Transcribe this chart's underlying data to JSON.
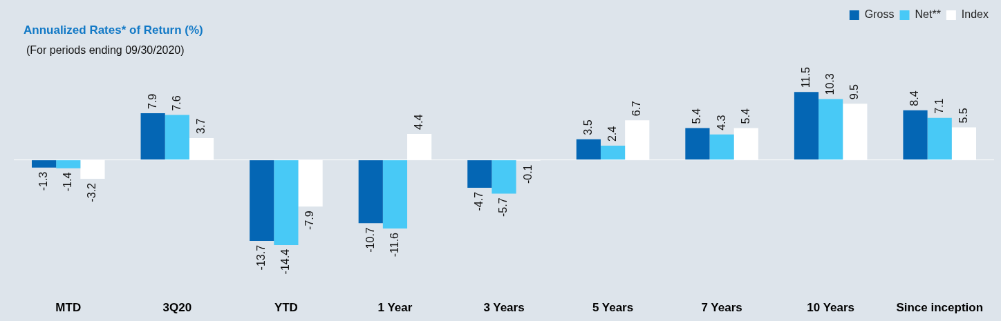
{
  "chart_data": {
    "type": "bar",
    "title": "Annualized Rates* of Return (%)",
    "subtitle": "(For periods ending 09/30/2020)",
    "categories": [
      "MTD",
      "3Q20",
      "YTD",
      "1 Year",
      "3 Years",
      "5 Years",
      "7 Years",
      "10 Years",
      "Since inception"
    ],
    "series": [
      {
        "name": "Gross",
        "color": "#0466b4",
        "values": [
          -1.3,
          7.9,
          -13.7,
          -10.7,
          -4.7,
          3.5,
          5.4,
          11.5,
          8.4
        ]
      },
      {
        "name": "Net**",
        "color": "#48c9f6",
        "values": [
          -1.4,
          7.6,
          -14.4,
          -11.6,
          -5.7,
          2.4,
          4.3,
          10.3,
          7.1
        ]
      },
      {
        "name": "Index",
        "color": "#ffffff",
        "values": [
          -3.2,
          3.7,
          -7.9,
          4.4,
          -0.1,
          6.7,
          5.4,
          9.5,
          5.5
        ]
      }
    ],
    "data_labels": true,
    "legend": "top right",
    "grid": false
  }
}
